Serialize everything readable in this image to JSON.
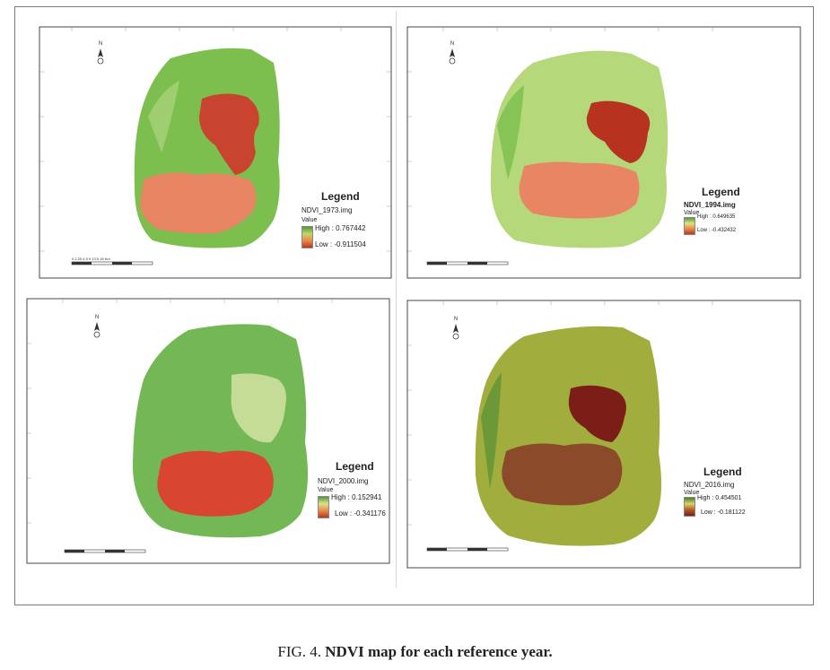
{
  "colors": {
    "vegetation_green": "#7cbf4e",
    "light_green": "#b5d87a",
    "red_water": "#c9442e",
    "orange_water": "#e88563",
    "dark_maroon": "#7a1e17",
    "olive": "#a1ad3c"
  },
  "icons": [
    "north-arrow-icon",
    "scale-bar-icon"
  ],
  "caption": {
    "label": "FIG. 4.",
    "text": "NDVI map for each reference year."
  },
  "panels": [
    {
      "id": "ndvi-1973",
      "legend_title": "Legend",
      "file": "NDVI_1973.img",
      "value_label": "Value",
      "high": "High : 0.767442",
      "low": "Low : -0.911504",
      "lake_north": "red",
      "lake_south": "orange-red speckled"
    },
    {
      "id": "ndvi-1994",
      "legend_title": "Legend",
      "file": "NDVI_1994.img",
      "value_label": "Value",
      "high": "High : 0.649635",
      "low": "Low : -0.432432",
      "lake_north": "dark red",
      "lake_south": "orange-red"
    },
    {
      "id": "ndvi-2000",
      "legend_title": "Legend",
      "file": "NDVI_2000.img",
      "value_label": "Value",
      "high": "High : 0.152941",
      "low": "Low : -0.341176",
      "lake_north": "light green",
      "lake_south": "red"
    },
    {
      "id": "ndvi-2016",
      "legend_title": "Legend",
      "file": "NDVI_2016.img",
      "value_label": "Value",
      "high": "High : 0.454501",
      "low": "Low : -0.181122",
      "lake_north": "dark maroon",
      "lake_south": "brown"
    }
  ]
}
